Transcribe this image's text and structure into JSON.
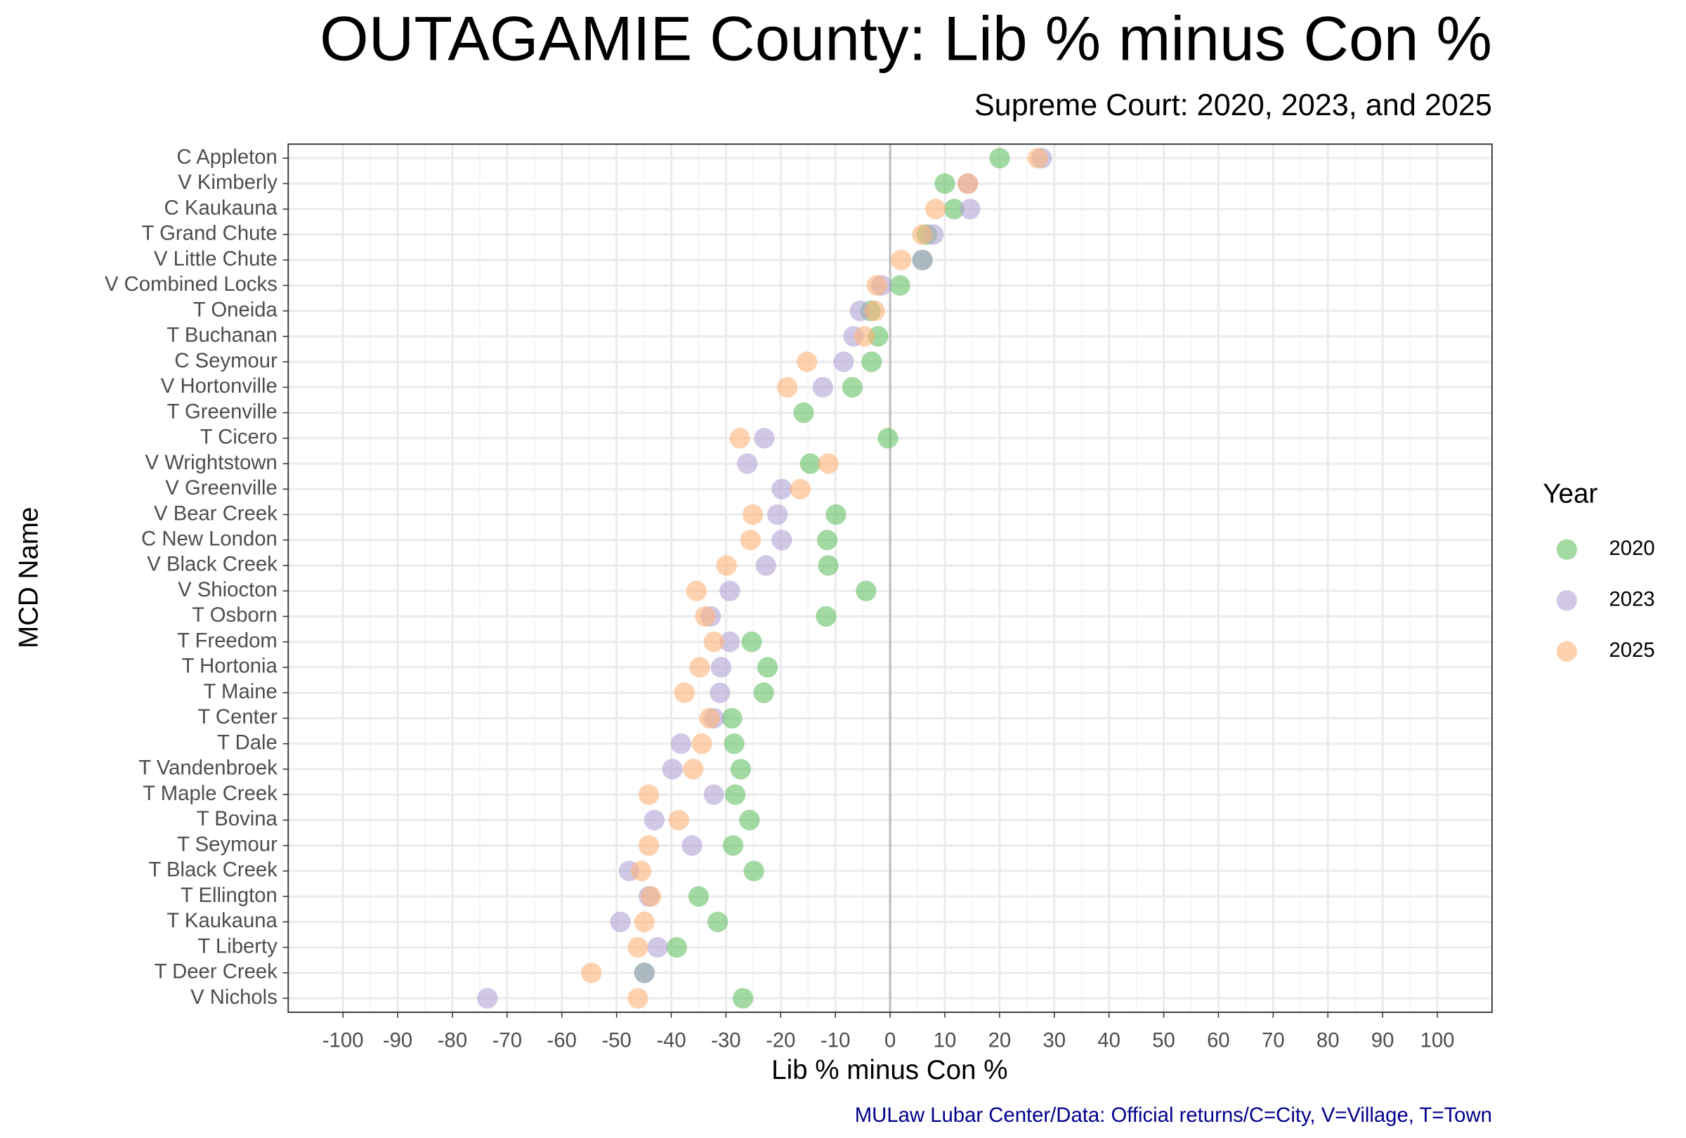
{
  "chart_data": {
    "type": "dot",
    "title": "OUTAGAMIE County: Lib % minus Con %",
    "subtitle": "Supreme Court: 2020, 2023, and 2025",
    "x_label": "Lib % minus Con %",
    "y_label": "MCD Name",
    "caption": "MULaw Lubar Center/Data: Official returns/C=City, V=Village, T=Town",
    "legend_title": "Year",
    "legend_position": "right",
    "grid": true,
    "reference_line": 0,
    "xlim": [
      -110,
      110
    ],
    "xticks": [
      -100,
      -90,
      -80,
      -70,
      -60,
      -50,
      -40,
      -30,
      -20,
      -10,
      0,
      10,
      20,
      30,
      40,
      50,
      60,
      70,
      80,
      90,
      100
    ],
    "categories": [
      "C Appleton",
      "V Kimberly",
      "C Kaukauna",
      "T Grand Chute",
      "V Little Chute",
      "V Combined Locks",
      "T Oneida",
      "T Buchanan",
      "C Seymour",
      "V Hortonville",
      "T Greenville",
      "T Cicero",
      "V Wrightstown",
      "V Greenville",
      "V Bear Creek",
      "C New London",
      "V Black Creek",
      "V Shiocton",
      "T Osborn",
      "T Freedom",
      "T Hortonia",
      "T Maine",
      "T Center",
      "T Dale",
      "T Vandenbroek",
      "T Maple Creek",
      "T Bovina",
      "T Seymour",
      "T Black Creek",
      "T Ellington",
      "T Kaukauna",
      "T Liberty",
      "T Deer Creek",
      "V Nichols"
    ],
    "series": [
      {
        "name": "2020",
        "color": "#66c266",
        "values": [
          20,
          10,
          11.7,
          6.7,
          5.9,
          1.8,
          -3.6,
          -2.2,
          -3.4,
          -6.9,
          -15.8,
          -0.4,
          -14.6,
          null,
          -9.9,
          -11.5,
          -11.3,
          -4.4,
          -11.7,
          -25.3,
          -22.4,
          -23.1,
          -28.9,
          -28.5,
          -27.3,
          -28.3,
          -25.7,
          -28.7,
          -24.9,
          -35,
          -31.5,
          -39,
          -44.9,
          -26.9
        ]
      },
      {
        "name": "2023",
        "color": "#b3a3d6",
        "values": [
          27.7,
          14.2,
          14.6,
          7.9,
          5.9,
          -1.6,
          -5.5,
          -6.7,
          -8.5,
          -12.3,
          null,
          -23,
          -26.1,
          -19.8,
          -20.6,
          -19.8,
          -22.7,
          -29.3,
          -32.8,
          -29.3,
          -30.9,
          -31.1,
          -32.2,
          -38.2,
          -39.8,
          -32.2,
          -43.1,
          -36.2,
          -47.7,
          -44.1,
          -49.3,
          -42.5,
          -44.9,
          -73.6
        ]
      },
      {
        "name": "2025",
        "color": "#fdb47a",
        "values": [
          27,
          14.2,
          8.3,
          5.9,
          2,
          -2.4,
          -2.8,
          -4.7,
          -15.2,
          -18.8,
          null,
          -27.5,
          -11.3,
          -16.4,
          -25.1,
          -25.5,
          -29.9,
          -35.4,
          -33.8,
          -32.2,
          -34.8,
          -37.6,
          -33,
          -34.4,
          -36,
          -44.1,
          -38.6,
          -44.1,
          -45.5,
          -43.7,
          -44.9,
          -46.1,
          -54.6,
          -46.1
        ]
      }
    ]
  }
}
